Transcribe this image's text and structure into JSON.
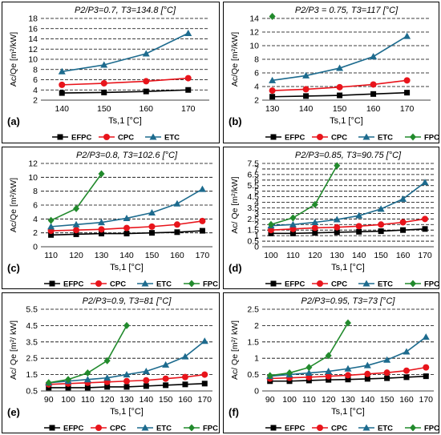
{
  "colors": {
    "EFPC": "#000000",
    "CPC": "#e8141b",
    "ETC": "#1d6b8e",
    "FPC": "#218a2c"
  },
  "chart_data": [
    {
      "type": "line",
      "panel_label": "(a)",
      "title": "P2/P3=0.7, T3=134.8 [°C]",
      "xlabel": "Ts,1 [°C]",
      "ylabel": "Ac/Qe [m²/kW]",
      "x": [
        140,
        150,
        160,
        170
      ],
      "xticks": [
        140,
        150,
        160,
        170
      ],
      "xlim": [
        135,
        175
      ],
      "ylim": [
        2,
        18
      ],
      "yticks": [
        2,
        4,
        6,
        8,
        10,
        12,
        14,
        16,
        18
      ],
      "grid": true,
      "legend": "bottom",
      "series": [
        {
          "name": "EFPC",
          "values": [
            3.4,
            3.5,
            3.7,
            4.0
          ]
        },
        {
          "name": "CPC",
          "values": [
            5.0,
            5.3,
            5.7,
            6.3
          ]
        },
        {
          "name": "ETC",
          "values": [
            7.6,
            8.9,
            11.1,
            15.1
          ]
        }
      ]
    },
    {
      "type": "line",
      "panel_label": "(b)",
      "title": "P2/P3 = 0.75, T3=117 [°C]",
      "xlabel": "Ts,1 [°C]",
      "ylabel": "Ac/Qe [m²/kW]",
      "x": [
        130,
        140,
        150,
        160,
        170
      ],
      "xticks": [
        130,
        140,
        150,
        160,
        170
      ],
      "xlim": [
        127,
        177
      ],
      "ylim": [
        2,
        14
      ],
      "yticks": [
        2,
        4,
        6,
        8,
        10,
        12,
        14
      ],
      "grid": true,
      "legend": "bottom",
      "series": [
        {
          "name": "EFPC",
          "values": [
            2.5,
            2.6,
            2.7,
            2.9,
            3.1
          ]
        },
        {
          "name": "CPC",
          "values": [
            3.4,
            3.6,
            3.9,
            4.3,
            4.9
          ]
        },
        {
          "name": "ETC",
          "values": [
            4.9,
            5.6,
            6.7,
            8.4,
            11.4
          ]
        },
        {
          "name": "FPC",
          "values": [
            14.3,
            null,
            null,
            null,
            null
          ]
        }
      ]
    },
    {
      "type": "line",
      "panel_label": "(c)",
      "title": "P2/P3=0.8, T3=102.6 [°C]",
      "xlabel": "Ts,1 [°C]",
      "ylabel": "Ac/Qe [m²/kW]",
      "x": [
        110,
        120,
        130,
        140,
        150,
        160,
        170
      ],
      "xticks": [
        110,
        120,
        130,
        140,
        150,
        160,
        170
      ],
      "xlim": [
        106,
        174
      ],
      "ylim": [
        0,
        12
      ],
      "yticks": [
        0,
        2,
        4,
        6,
        8,
        10,
        12
      ],
      "grid": true,
      "legend": "bottom",
      "series": [
        {
          "name": "EFPC",
          "values": [
            1.7,
            1.8,
            1.9,
            1.9,
            2.0,
            2.1,
            2.3
          ]
        },
        {
          "name": "CPC",
          "values": [
            2.3,
            2.4,
            2.5,
            2.7,
            2.9,
            3.2,
            3.7
          ]
        },
        {
          "name": "ETC",
          "values": [
            2.9,
            3.2,
            3.5,
            4.1,
            4.9,
            6.2,
            8.3
          ]
        },
        {
          "name": "FPC",
          "values": [
            3.8,
            5.5,
            10.5,
            null,
            null,
            null,
            null
          ]
        }
      ]
    },
    {
      "type": "line",
      "panel_label": "(d)",
      "title": "P2/P3=0.85, T3=90.75 [°C]",
      "xlabel": "Ts,1 [°C]",
      "ylabel": "Ac/ Qe [m²/kW]",
      "x": [
        100,
        110,
        120,
        130,
        140,
        150,
        160,
        170
      ],
      "xticks": [
        100,
        110,
        120,
        130,
        140,
        150,
        160,
        170
      ],
      "xlim": [
        96,
        174
      ],
      "ylim": [
        0,
        7.5
      ],
      "yticks": [
        0,
        0.5,
        1,
        1.5,
        2,
        2.5,
        3,
        3.5,
        4,
        4.5,
        5,
        5.5,
        6,
        6.5,
        7,
        7.5
      ],
      "grid": true,
      "legend": "bottom",
      "series": [
        {
          "name": "EFPC",
          "values": [
            1.2,
            1.2,
            1.25,
            1.3,
            1.35,
            1.4,
            1.5,
            1.6
          ]
        },
        {
          "name": "CPC",
          "values": [
            1.5,
            1.6,
            1.7,
            1.75,
            1.85,
            2.0,
            2.2,
            2.5
          ]
        },
        {
          "name": "ETC",
          "values": [
            1.9,
            2.0,
            2.2,
            2.45,
            2.8,
            3.4,
            4.3,
            5.8
          ]
        },
        {
          "name": "FPC",
          "values": [
            2.0,
            2.6,
            3.8,
            7.3,
            null,
            null,
            null,
            null
          ]
        }
      ]
    },
    {
      "type": "line",
      "panel_label": "(e)",
      "title": "P2/P3=0.9, T3=81 [°C]",
      "xlabel": "Ts,1 [°C]",
      "ylabel": "Ac/ Qe [m²/ kW]",
      "x": [
        90,
        100,
        110,
        120,
        130,
        140,
        150,
        160,
        170
      ],
      "xticks": [
        90,
        100,
        110,
        120,
        130,
        140,
        150,
        160,
        170
      ],
      "xlim": [
        86,
        174
      ],
      "ylim": [
        0.5,
        5.5
      ],
      "yticks": [
        0.5,
        1.5,
        2.5,
        3.5,
        4.5,
        5.5
      ],
      "grid": true,
      "legend": "bottom",
      "series": [
        {
          "name": "EFPC",
          "values": [
            0.7,
            0.7,
            0.7,
            0.75,
            0.75,
            0.8,
            0.85,
            0.9,
            0.95
          ]
        },
        {
          "name": "CPC",
          "values": [
            0.9,
            0.95,
            1.0,
            1.05,
            1.1,
            1.15,
            1.25,
            1.35,
            1.5
          ]
        },
        {
          "name": "ETC",
          "values": [
            1.0,
            1.1,
            1.2,
            1.3,
            1.5,
            1.7,
            2.1,
            2.6,
            3.55
          ]
        },
        {
          "name": "FPC",
          "values": [
            1.0,
            1.2,
            1.6,
            2.35,
            4.5,
            null,
            null,
            null,
            null
          ]
        }
      ]
    },
    {
      "type": "line",
      "panel_label": "(f)",
      "title": "P2/P3=0.95, T3=73 [°C]",
      "xlabel": "Ts,1 [°C]",
      "ylabel": "Ac/ Qe [m²/ kW]",
      "x": [
        90,
        100,
        110,
        120,
        130,
        140,
        150,
        160,
        170
      ],
      "xticks": [
        90,
        100,
        110,
        120,
        130,
        140,
        150,
        160,
        170
      ],
      "xlim": [
        86,
        174
      ],
      "ylim": [
        0,
        2.5
      ],
      "yticks": [
        0,
        0.5,
        1,
        1.5,
        2,
        2.5
      ],
      "grid": true,
      "legend": "bottom",
      "series": [
        {
          "name": "EFPC",
          "values": [
            0.3,
            0.3,
            0.32,
            0.34,
            0.35,
            0.37,
            0.39,
            0.42,
            0.45
          ]
        },
        {
          "name": "CPC",
          "values": [
            0.38,
            0.4,
            0.42,
            0.45,
            0.48,
            0.52,
            0.56,
            0.62,
            0.72
          ]
        },
        {
          "name": "ETC",
          "values": [
            0.45,
            0.5,
            0.55,
            0.6,
            0.68,
            0.78,
            0.95,
            1.2,
            1.65
          ]
        },
        {
          "name": "FPC",
          "values": [
            0.47,
            0.55,
            0.72,
            1.08,
            2.08,
            null,
            null,
            null,
            null
          ]
        }
      ]
    }
  ]
}
